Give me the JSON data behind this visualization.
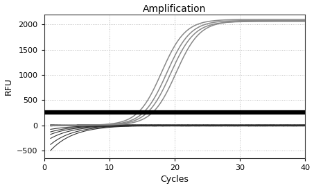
{
  "title": "Amplification",
  "xlabel": "Cycles",
  "ylabel": "RFU",
  "xlim": [
    0,
    40
  ],
  "ylim": [
    -650,
    2200
  ],
  "yticks": [
    -500,
    0,
    500,
    1000,
    1500,
    2000
  ],
  "xticks": [
    0,
    10,
    20,
    30,
    40
  ],
  "threshold_y": 250,
  "sigmoid_color": "#888888",
  "threshold_color": "#000000",
  "num_sigmoid": 4,
  "sigmoid_midpoints": [
    18.0,
    18.8,
    19.4,
    20.2
  ],
  "sigmoid_steepness": [
    0.55,
    0.55,
    0.55,
    0.55
  ],
  "sigmoid_plateaus": [
    2100,
    2080,
    2060,
    2070
  ],
  "sigmoid_start": 0,
  "dip_depths": [
    -80,
    -130,
    -180,
    -260,
    -380,
    -500
  ],
  "dip_steepness": [
    0.28,
    0.28,
    0.28,
    0.28,
    0.28,
    0.28
  ],
  "flat_line_bases": [
    -5,
    -10,
    5,
    0,
    -15,
    3,
    -8,
    8,
    -3,
    12,
    -18,
    6
  ],
  "extra_flat_bases": [
    -2,
    4,
    -6,
    2,
    -12
  ]
}
